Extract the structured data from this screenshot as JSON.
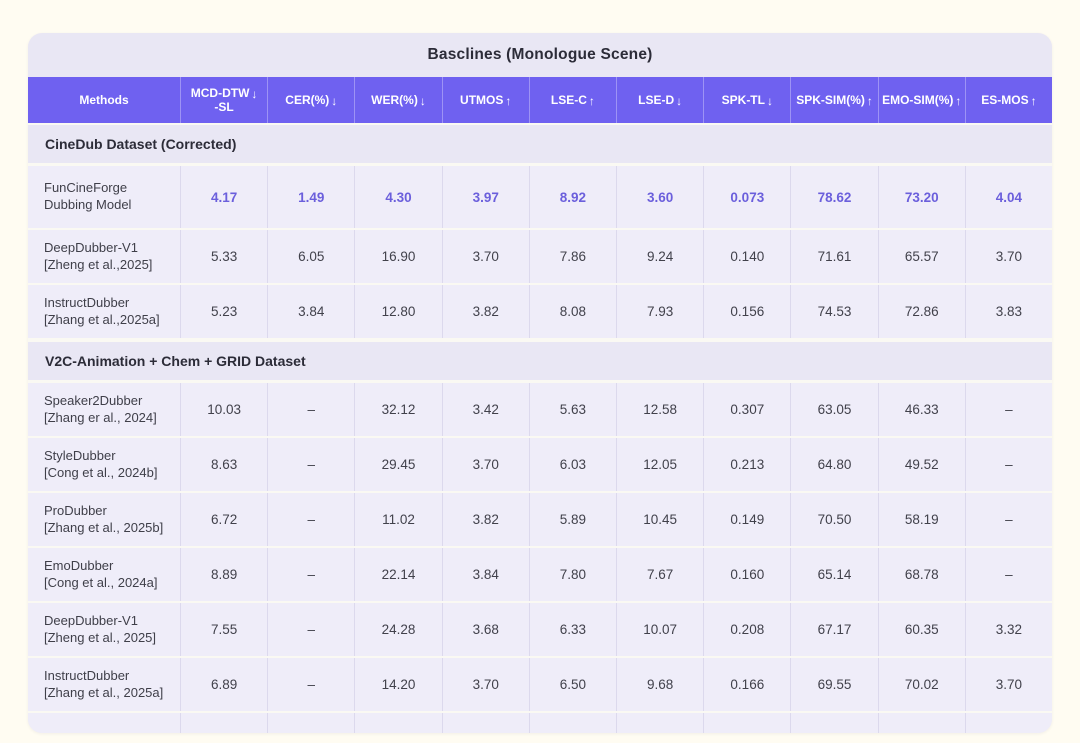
{
  "colors": {
    "header_bg": "#6f61f0",
    "highlight": "#6b5fdc",
    "card_bg": "#e9e7f4",
    "row_bg": "#efedf9"
  },
  "chart_data": {
    "type": "table",
    "title": "Basclines (Monologue Scene)",
    "columns": [
      {
        "label": "Methods",
        "arrow": ""
      },
      {
        "label": "MCD-DTW",
        "label2": "-SL",
        "arrow": "↓"
      },
      {
        "label": "CER(%)",
        "arrow": "↓"
      },
      {
        "label": "WER(%)",
        "arrow": "↓"
      },
      {
        "label": "UTMOS",
        "arrow": "↑"
      },
      {
        "label": "LSE-C",
        "arrow": "↑"
      },
      {
        "label": "LSE-D",
        "arrow": "↓"
      },
      {
        "label": "SPK-TL",
        "arrow": "↓"
      },
      {
        "label": "SPK-SIM(%)",
        "arrow": "↑"
      },
      {
        "label": "EMO-SIM(%)",
        "arrow": "↑"
      },
      {
        "label": "ES-MOS",
        "arrow": "↑"
      }
    ],
    "sections": [
      {
        "title": "CineDub Dataset (Corrected)",
        "rows": [
          {
            "method": "FunCineForge",
            "subtitle": "Dubbing Model",
            "highlight": true,
            "tall": true,
            "values": [
              "4.17",
              "1.49",
              "4.30",
              "3.97",
              "8.92",
              "3.60",
              "0.073",
              "78.62",
              "73.20",
              "4.04"
            ]
          },
          {
            "method": "DeepDubber-V1",
            "subtitle": "[Zheng et al.,2025]",
            "highlight": false,
            "values": [
              "5.33",
              "6.05",
              "16.90",
              "3.70",
              "7.86",
              "9.24",
              "0.140",
              "71.61",
              "65.57",
              "3.70"
            ]
          },
          {
            "method": "InstructDubber",
            "subtitle": "[Zhang et al.,2025a]",
            "highlight": false,
            "values": [
              "5.23",
              "3.84",
              "12.80",
              "3.82",
              "8.08",
              "7.93",
              "0.156",
              "74.53",
              "72.86",
              "3.83"
            ]
          }
        ]
      },
      {
        "title": "V2C-Animation + Chem + GRID Dataset",
        "rows": [
          {
            "method": "Speaker2Dubber",
            "subtitle": "[Zhang er al., 2024]",
            "highlight": false,
            "values": [
              "10.03",
              "–",
              "32.12",
              "3.42",
              "5.63",
              "12.58",
              "0.307",
              "63.05",
              "46.33",
              "–"
            ]
          },
          {
            "method": "StyleDubber",
            "subtitle": "[Cong et al., 2024b]",
            "highlight": false,
            "values": [
              "8.63",
              "–",
              "29.45",
              "3.70",
              "6.03",
              "12.05",
              "0.213",
              "64.80",
              "49.52",
              "–"
            ]
          },
          {
            "method": "ProDubber",
            "subtitle": "[Zhang et al., 2025b]",
            "highlight": false,
            "values": [
              "6.72",
              "–",
              "11.02",
              "3.82",
              "5.89",
              "10.45",
              "0.149",
              "70.50",
              "58.19",
              "–"
            ]
          },
          {
            "method": "EmoDubber",
            "subtitle": "[Cong et al., 2024a]",
            "highlight": false,
            "values": [
              "8.89",
              "–",
              "22.14",
              "3.84",
              "7.80",
              "7.67",
              "0.160",
              "65.14",
              "68.78",
              "–"
            ]
          },
          {
            "method": "DeepDubber-V1",
            "subtitle": "[Zheng et al., 2025]",
            "highlight": false,
            "values": [
              "7.55",
              "–",
              "24.28",
              "3.68",
              "6.33",
              "10.07",
              "0.208",
              "67.17",
              "60.35",
              "3.32"
            ]
          },
          {
            "method": "InstructDubber",
            "subtitle": "[Zhang et al., 2025a]",
            "highlight": false,
            "values": [
              "6.89",
              "–",
              "14.20",
              "3.70",
              "6.50",
              "9.68",
              "0.166",
              "69.55",
              "70.02",
              "3.70"
            ]
          }
        ]
      }
    ]
  }
}
